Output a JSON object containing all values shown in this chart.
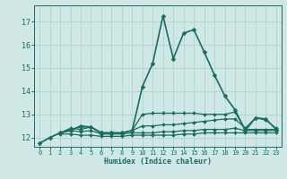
{
  "xlabel": "Humidex (Indice chaleur)",
  "bg_color": "#cfe8e6",
  "grid_color": "#b0d4d0",
  "line_color": "#1a6b5e",
  "xlim": [
    -0.5,
    23.5
  ],
  "ylim": [
    11.6,
    17.7
  ],
  "yticks": [
    12,
    13,
    14,
    15,
    16,
    17
  ],
  "xticks": [
    0,
    1,
    2,
    3,
    4,
    5,
    6,
    7,
    8,
    9,
    10,
    11,
    12,
    13,
    14,
    15,
    16,
    17,
    18,
    19,
    20,
    21,
    22,
    23
  ],
  "lines": [
    {
      "x": [
        0,
        1,
        2,
        3,
        4,
        5,
        6,
        7,
        8,
        9,
        10,
        11,
        12,
        13,
        14,
        15,
        16,
        17,
        18,
        19,
        20,
        21,
        22,
        23
      ],
      "y": [
        11.75,
        12.0,
        12.2,
        12.3,
        12.5,
        12.45,
        12.2,
        12.2,
        12.2,
        12.3,
        14.2,
        15.2,
        17.25,
        15.4,
        16.5,
        16.65,
        15.7,
        14.7,
        13.8,
        13.2,
        12.3,
        12.85,
        12.8,
        12.35
      ],
      "marker": "D",
      "markersize": 2.5,
      "linewidth": 1.2
    },
    {
      "x": [
        0,
        1,
        2,
        3,
        4,
        5,
        6,
        7,
        8,
        9,
        10,
        11,
        12,
        13,
        14,
        15,
        16,
        17,
        18,
        19,
        20,
        21,
        22,
        23
      ],
      "y": [
        11.75,
        12.0,
        12.2,
        12.35,
        12.45,
        12.45,
        12.2,
        12.2,
        12.2,
        12.3,
        13.0,
        13.05,
        13.05,
        13.05,
        13.05,
        13.05,
        13.0,
        13.0,
        13.0,
        13.1,
        12.35,
        12.35,
        12.35,
        12.35
      ],
      "marker": "D",
      "markersize": 2.0,
      "linewidth": 0.9
    },
    {
      "x": [
        2,
        3,
        4,
        5,
        6,
        7,
        8,
        9,
        10,
        11,
        12,
        13,
        14,
        15,
        16,
        17,
        18,
        19,
        20,
        21,
        22,
        23
      ],
      "y": [
        12.2,
        12.4,
        12.35,
        12.45,
        12.2,
        12.2,
        12.2,
        12.3,
        12.5,
        12.5,
        12.55,
        12.55,
        12.6,
        12.65,
        12.7,
        12.75,
        12.8,
        12.8,
        12.4,
        12.85,
        12.75,
        12.4
      ],
      "marker": "D",
      "markersize": 2.0,
      "linewidth": 0.9
    },
    {
      "x": [
        2,
        3,
        4,
        5,
        6,
        7,
        8,
        9,
        10,
        11,
        12,
        13,
        14,
        15,
        16,
        17,
        18,
        19,
        20,
        21,
        22,
        23
      ],
      "y": [
        12.2,
        12.3,
        12.25,
        12.3,
        12.15,
        12.15,
        12.15,
        12.2,
        12.2,
        12.2,
        12.25,
        12.25,
        12.3,
        12.3,
        12.35,
        12.35,
        12.35,
        12.4,
        12.3,
        12.3,
        12.3,
        12.3
      ],
      "marker": "D",
      "markersize": 2.0,
      "linewidth": 0.9
    },
    {
      "x": [
        2,
        3,
        4,
        5,
        6,
        7,
        8,
        9,
        10,
        11,
        12,
        13,
        14,
        15,
        16,
        17,
        18,
        19,
        20,
        21,
        22,
        23
      ],
      "y": [
        12.15,
        12.15,
        12.1,
        12.1,
        12.05,
        12.05,
        12.05,
        12.1,
        12.1,
        12.1,
        12.1,
        12.1,
        12.15,
        12.15,
        12.2,
        12.2,
        12.2,
        12.2,
        12.2,
        12.2,
        12.2,
        12.2
      ],
      "marker": "D",
      "markersize": 2.0,
      "linewidth": 0.9
    }
  ]
}
